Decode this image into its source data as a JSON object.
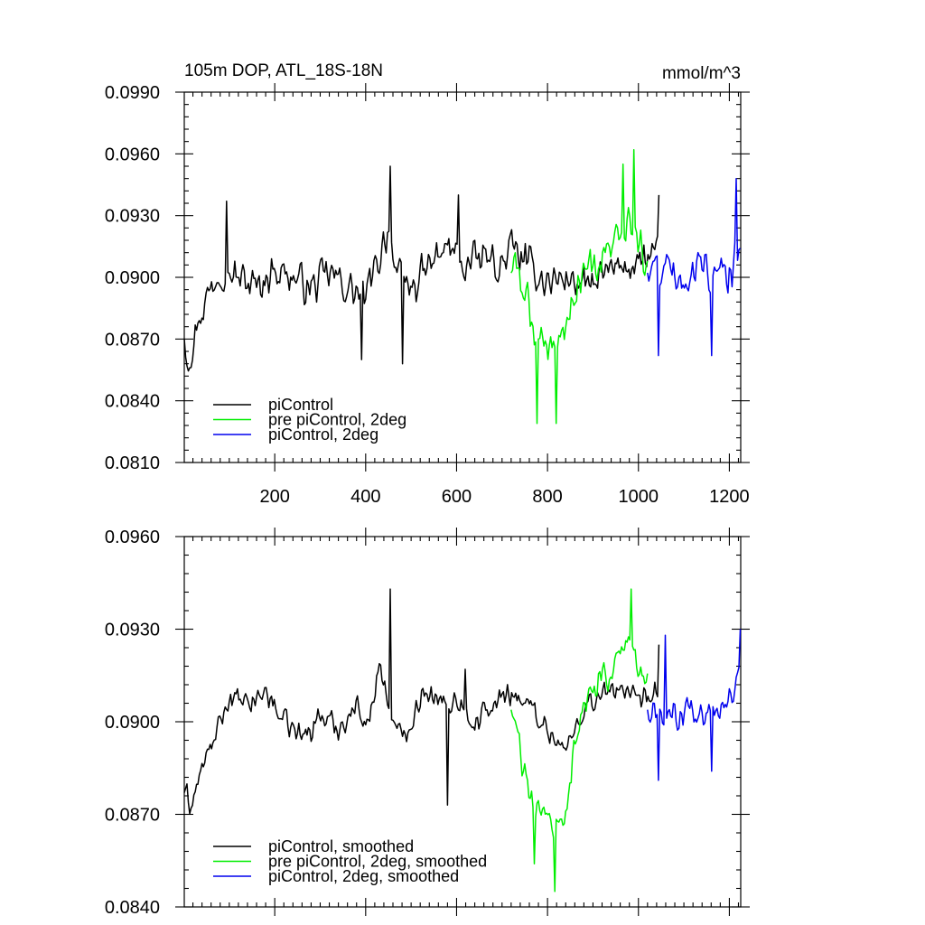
{
  "chart_data": [
    {
      "type": "line",
      "title": "105m DOP, ATL_18S-18N",
      "units_label": "mmol/m^3",
      "xlabel": "",
      "ylabel": "",
      "xlim": [
        1,
        1225
      ],
      "ylim": [
        0.081,
        0.099
      ],
      "x_ticks": [
        200,
        400,
        600,
        800,
        1000,
        1200
      ],
      "x_tick_labels": [
        "200",
        "400",
        "600",
        "800",
        "1000",
        "1200"
      ],
      "y_ticks": [
        0.081,
        0.084,
        0.087,
        0.09,
        0.093,
        0.096,
        0.099
      ],
      "y_tick_labels": [
        "0.0810",
        "0.0840",
        "0.0870",
        "0.0900",
        "0.0930",
        "0.0960",
        "0.0990"
      ],
      "legend_position": "bottom-left",
      "grid": false,
      "series": [
        {
          "name": "piControl",
          "color": "#000000",
          "x_range": [
            1,
            1045
          ],
          "anchors": [
            [
              1,
              0.0873
            ],
            [
              10,
              0.086
            ],
            [
              40,
              0.0885
            ],
            [
              80,
              0.0905
            ],
            [
              120,
              0.09
            ],
            [
              160,
              0.0895
            ],
            [
              200,
              0.0905
            ],
            [
              240,
              0.09
            ],
            [
              280,
              0.0895
            ],
            [
              320,
              0.0902
            ],
            [
              360,
              0.0895
            ],
            [
              400,
              0.089
            ],
            [
              430,
              0.091
            ],
            [
              450,
              0.0925
            ],
            [
              470,
              0.09
            ],
            [
              500,
              0.0895
            ],
            [
              540,
              0.0905
            ],
            [
              580,
              0.0915
            ],
            [
              620,
              0.0905
            ],
            [
              660,
              0.091
            ],
            [
              700,
              0.0905
            ],
            [
              720,
              0.0915
            ],
            [
              760,
              0.0905
            ],
            [
              800,
              0.0898
            ],
            [
              840,
              0.09
            ],
            [
              880,
              0.0895
            ],
            [
              920,
              0.09
            ],
            [
              960,
              0.0905
            ],
            [
              1000,
              0.0908
            ],
            [
              1045,
              0.091
            ]
          ],
          "extremes": [
            [
              12,
              0.0856
            ],
            [
              95,
              0.0937
            ],
            [
              455,
              0.0954
            ],
            [
              390,
              0.086
            ],
            [
              480,
              0.0858
            ],
            [
              605,
              0.094
            ],
            [
              1045,
              0.094
            ]
          ],
          "noise_amplitude": 0.0011
        },
        {
          "name": "pre piControl, 2deg",
          "color": "#00ee00",
          "x_range": [
            720,
            1020
          ],
          "anchors": [
            [
              720,
              0.0905
            ],
            [
              740,
              0.09
            ],
            [
              760,
              0.0885
            ],
            [
              780,
              0.087
            ],
            [
              800,
              0.0868
            ],
            [
              820,
              0.0868
            ],
            [
              840,
              0.0875
            ],
            [
              860,
              0.0895
            ],
            [
              880,
              0.0905
            ],
            [
              900,
              0.0905
            ],
            [
              920,
              0.091
            ],
            [
              940,
              0.0915
            ],
            [
              960,
              0.0918
            ],
            [
              980,
              0.0925
            ],
            [
              1000,
              0.0912
            ],
            [
              1020,
              0.091
            ]
          ],
          "extremes": [
            [
              778,
              0.0829
            ],
            [
              820,
              0.0829
            ],
            [
              990,
              0.0962
            ],
            [
              965,
              0.0955
            ]
          ],
          "noise_amplitude": 0.0012
        },
        {
          "name": "piControl, 2deg",
          "color": "#0000ee",
          "x_range": [
            1020,
            1225
          ],
          "anchors": [
            [
              1020,
              0.0905
            ],
            [
              1060,
              0.0905
            ],
            [
              1100,
              0.09
            ],
            [
              1140,
              0.0905
            ],
            [
              1180,
              0.09
            ],
            [
              1225,
              0.091
            ]
          ],
          "extremes": [
            [
              1045,
              0.0862
            ],
            [
              1160,
              0.0862
            ],
            [
              1215,
              0.0948
            ]
          ],
          "noise_amplitude": 0.0012
        }
      ]
    },
    {
      "type": "line",
      "title": "",
      "xlabel": "",
      "ylabel": "",
      "xlim": [
        1,
        1225
      ],
      "ylim": [
        0.084,
        0.096
      ],
      "x_ticks": [
        200,
        400,
        600,
        800,
        1000,
        1200
      ],
      "x_tick_labels": [],
      "y_ticks": [
        0.084,
        0.087,
        0.09,
        0.093,
        0.096
      ],
      "y_tick_labels": [
        "0.0840",
        "0.0870",
        "0.0900",
        "0.0930",
        "0.0960"
      ],
      "legend_position": "bottom-left",
      "grid": false,
      "series": [
        {
          "name": "piControl, smoothed",
          "color": "#000000",
          "x_range": [
            1,
            1045
          ],
          "anchors": [
            [
              1,
              0.0878
            ],
            [
              15,
              0.0872
            ],
            [
              40,
              0.0885
            ],
            [
              70,
              0.0895
            ],
            [
              100,
              0.0908
            ],
            [
              140,
              0.0905
            ],
            [
              180,
              0.091
            ],
            [
              220,
              0.09
            ],
            [
              260,
              0.0895
            ],
            [
              300,
              0.0902
            ],
            [
              340,
              0.0898
            ],
            [
              380,
              0.0905
            ],
            [
              410,
              0.09
            ],
            [
              430,
              0.092
            ],
            [
              450,
              0.0905
            ],
            [
              470,
              0.0895
            ],
            [
              500,
              0.09
            ],
            [
              530,
              0.0912
            ],
            [
              560,
              0.0905
            ],
            [
              600,
              0.0908
            ],
            [
              640,
              0.09
            ],
            [
              680,
              0.0905
            ],
            [
              720,
              0.091
            ],
            [
              760,
              0.0905
            ],
            [
              800,
              0.0898
            ],
            [
              840,
              0.089
            ],
            [
              880,
              0.0905
            ],
            [
              920,
              0.0908
            ],
            [
              960,
              0.0912
            ],
            [
              1000,
              0.0905
            ],
            [
              1045,
              0.091
            ]
          ],
          "extremes": [
            [
              15,
              0.0872
            ],
            [
              453,
              0.0943
            ],
            [
              580,
              0.0873
            ],
            [
              620,
              0.0917
            ],
            [
              1045,
              0.0925
            ]
          ],
          "noise_amplitude": 0.0005
        },
        {
          "name": "pre piControl, 2deg, smoothed",
          "color": "#00ee00",
          "x_range": [
            720,
            1020
          ],
          "anchors": [
            [
              720,
              0.0905
            ],
            [
              740,
              0.089
            ],
            [
              760,
              0.0875
            ],
            [
              780,
              0.087
            ],
            [
              800,
              0.0868
            ],
            [
              820,
              0.0866
            ],
            [
              840,
              0.087
            ],
            [
              860,
              0.0895
            ],
            [
              880,
              0.0905
            ],
            [
              900,
              0.0908
            ],
            [
              920,
              0.0915
            ],
            [
              940,
              0.0915
            ],
            [
              960,
              0.092
            ],
            [
              980,
              0.093
            ],
            [
              1000,
              0.0915
            ],
            [
              1020,
              0.0912
            ]
          ],
          "extremes": [
            [
              772,
              0.0854
            ],
            [
              817,
              0.0845
            ],
            [
              985,
              0.0943
            ]
          ],
          "noise_amplitude": 0.0006
        },
        {
          "name": "piControl, 2deg, smoothed",
          "color": "#0000ee",
          "x_range": [
            1020,
            1225
          ],
          "anchors": [
            [
              1020,
              0.0905
            ],
            [
              1060,
              0.09
            ],
            [
              1100,
              0.0905
            ],
            [
              1140,
              0.0903
            ],
            [
              1180,
              0.0905
            ],
            [
              1225,
              0.0915
            ]
          ],
          "extremes": [
            [
              1045,
              0.0881
            ],
            [
              1060,
              0.0928
            ],
            [
              1160,
              0.0884
            ],
            [
              1225,
              0.093
            ]
          ],
          "noise_amplitude": 0.0006
        }
      ]
    }
  ]
}
